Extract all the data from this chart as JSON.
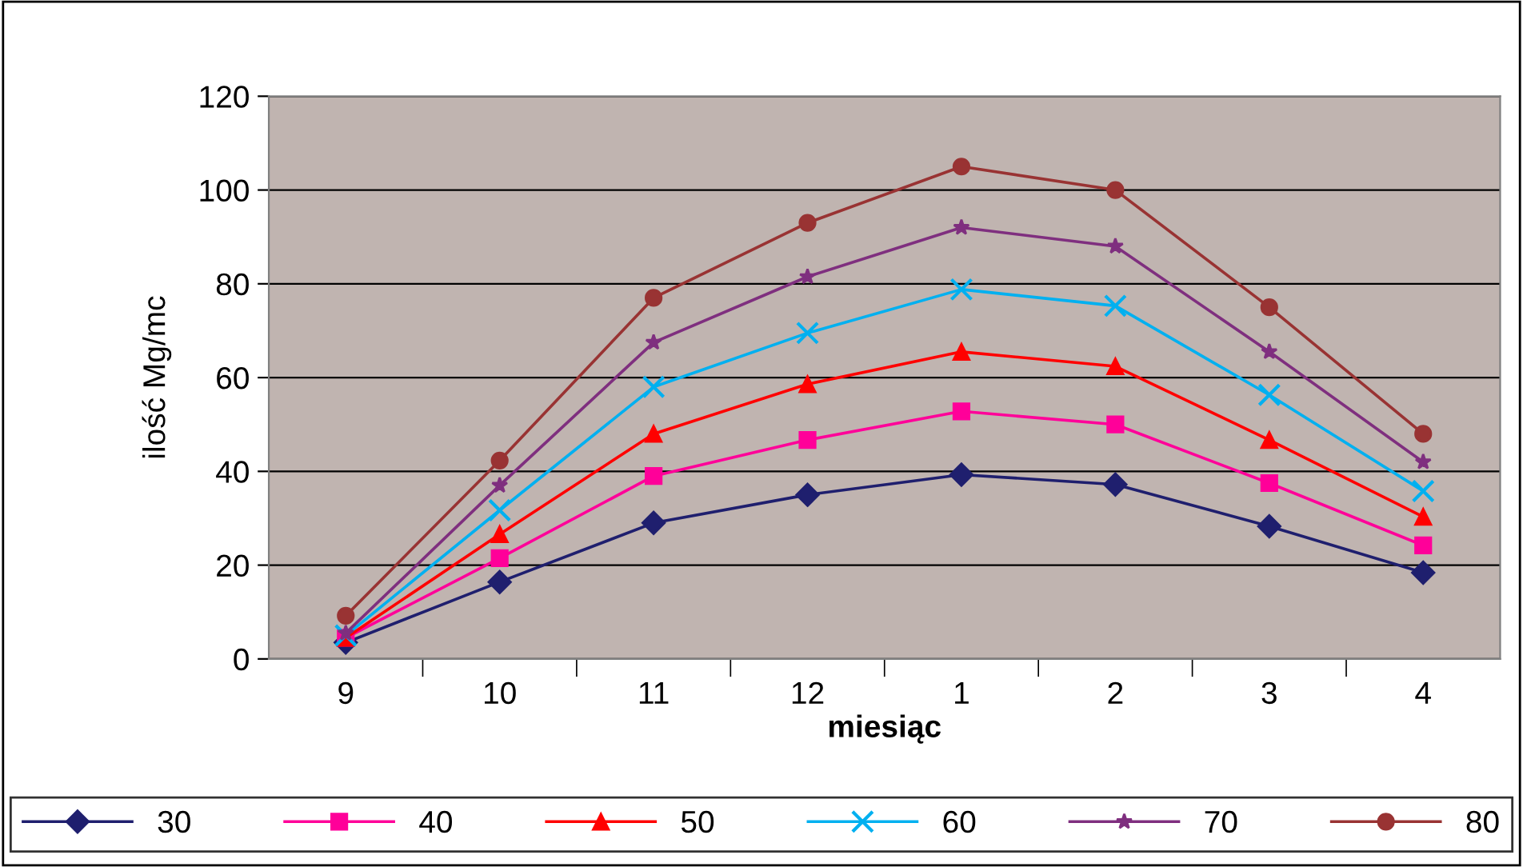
{
  "chart_data": {
    "type": "line",
    "xlabel": "miesiąc",
    "ylabel": "ilość Mg/mc",
    "categories": [
      "9",
      "10",
      "11",
      "12",
      "1",
      "2",
      "3",
      "4"
    ],
    "series": [
      {
        "name": "30",
        "color": "#1f1f6e",
        "marker": "diamond",
        "values": [
          3.5,
          16.4,
          29,
          35,
          39.3,
          37.2,
          28.3,
          18.4
        ]
      },
      {
        "name": "40",
        "color": "#ff0099",
        "marker": "square",
        "values": [
          4.5,
          21.5,
          39,
          46.7,
          52.8,
          50,
          37.5,
          24.2
        ]
      },
      {
        "name": "50",
        "color": "#ff0000",
        "marker": "triangle",
        "values": [
          4.5,
          26.6,
          48,
          58.6,
          65.5,
          62.4,
          46.7,
          30.3
        ]
      },
      {
        "name": "60",
        "color": "#00b0f0",
        "marker": "cross",
        "values": [
          5,
          31.7,
          58,
          69.5,
          78.8,
          75.3,
          56.3,
          35.8
        ]
      },
      {
        "name": "70",
        "color": "#7f2f7f",
        "marker": "star",
        "values": [
          5.5,
          37,
          67.5,
          81.5,
          92,
          88,
          65.5,
          42
        ]
      },
      {
        "name": "80",
        "color": "#993333",
        "marker": "circle",
        "values": [
          9.2,
          42.3,
          77,
          93,
          105,
          100,
          75,
          48
        ]
      }
    ],
    "ylim": [
      0,
      120
    ],
    "yticks": [
      0,
      20,
      40,
      60,
      80,
      100,
      120
    ],
    "grid": "y",
    "legend": "bottom",
    "line_style": "solid"
  }
}
